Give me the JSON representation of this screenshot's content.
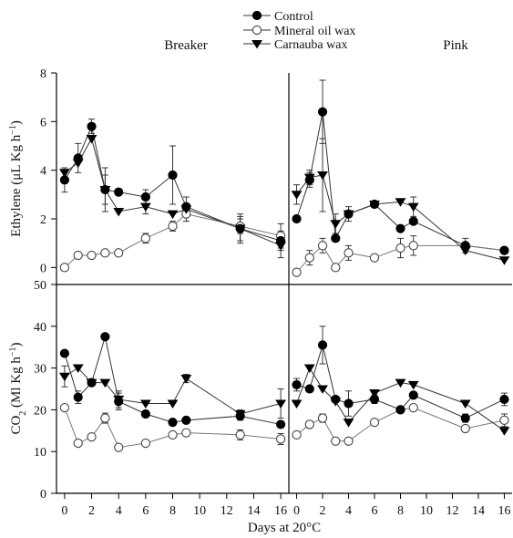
{
  "chart_data": {
    "type": "line",
    "xlabel": "Days at 20°C",
    "x_ticks": [
      0,
      2,
      4,
      6,
      8,
      10,
      12,
      14,
      16
    ],
    "legend": {
      "placement": "top-center",
      "entries": [
        {
          "name": "Control",
          "marker": "filled-circle"
        },
        {
          "name": "Mineral oil wax",
          "marker": "open-circle"
        },
        {
          "name": "Carnauba wax",
          "marker": "filled-triangle-down"
        }
      ]
    },
    "stages": [
      "Breaker",
      "Pink"
    ],
    "rows": [
      {
        "ylabel_main": "Ethylene (μL Kg h",
        "ylabel_sup": "−1",
        "ylabel_tail": ")",
        "ylim": [
          -0.7,
          8
        ],
        "yticks": [
          0,
          2,
          4,
          6,
          8
        ]
      },
      {
        "ylabel_main": "CO",
        "ylabel_sub": "2",
        "ylabel_mid": " (Ml Kg h",
        "ylabel_sup": "−1",
        "ylabel_tail": ")",
        "ylim": [
          0,
          50
        ],
        "yticks": [
          0,
          10,
          20,
          30,
          40,
          50
        ]
      }
    ],
    "panels": [
      {
        "row": 0,
        "col": 0,
        "stage": "Breaker",
        "quantity": "ethylene",
        "series": [
          {
            "name": "Control",
            "marker": "filled-circle",
            "x": [
              0,
              1,
              2,
              3,
              4,
              6,
              8,
              9,
              13,
              16
            ],
            "y": [
              3.6,
              4.5,
              5.8,
              3.2,
              3.1,
              2.9,
              3.8,
              2.5,
              1.6,
              1.1
            ],
            "err": [
              0.5,
              0.6,
              0.3,
              0.6,
              0.1,
              0.3,
              1.2,
              0.4,
              0.6,
              0.4
            ]
          },
          {
            "name": "Mineral oil wax",
            "marker": "open-circle",
            "x": [
              0,
              1,
              2,
              3,
              4,
              6,
              8,
              9,
              13,
              16
            ],
            "y": [
              0.0,
              0.5,
              0.5,
              0.6,
              0.6,
              1.2,
              1.7,
              2.2,
              1.7,
              1.3
            ],
            "err": [
              0,
              0,
              0,
              0,
              0,
              0.2,
              0.2,
              0.3,
              0.3,
              0.5
            ]
          },
          {
            "name": "Carnauba wax",
            "marker": "filled-triangle-down",
            "x": [
              0,
              1,
              2,
              3,
              4,
              6,
              8,
              9,
              13,
              16
            ],
            "y": [
              3.9,
              4.3,
              5.3,
              3.2,
              2.3,
              2.5,
              2.2,
              2.4,
              1.6,
              0.9
            ],
            "err": [
              0,
              0,
              0,
              0.9,
              0,
              0.3,
              0,
              0,
              0.5,
              0.5
            ]
          }
        ]
      },
      {
        "row": 0,
        "col": 1,
        "stage": "Pink",
        "quantity": "ethylene",
        "series": [
          {
            "name": "Control",
            "marker": "filled-circle",
            "x": [
              0,
              1,
              2,
              3,
              4,
              6,
              8,
              9,
              13,
              16
            ],
            "y": [
              2.0,
              3.6,
              6.4,
              1.2,
              2.2,
              2.6,
              1.6,
              1.9,
              0.9,
              0.7
            ],
            "err": [
              0,
              0.3,
              1.3,
              0,
              0.3,
              0,
              0,
              0,
              0.3,
              0
            ]
          },
          {
            "name": "Mineral oil wax",
            "marker": "open-circle",
            "x": [
              0,
              1,
              2,
              3,
              4,
              6,
              8,
              9,
              13,
              16
            ],
            "y": [
              -0.2,
              0.4,
              0.9,
              0.0,
              0.6,
              0.4,
              0.8,
              0.9,
              0.9,
              0.7
            ],
            "err": [
              0,
              0.3,
              0.3,
              0,
              0.3,
              0,
              0.4,
              0.4,
              0,
              0
            ]
          },
          {
            "name": "Carnauba wax",
            "marker": "filled-triangle-down",
            "x": [
              0,
              1,
              2,
              3,
              4,
              6,
              8,
              9,
              13,
              16
            ],
            "y": [
              3.0,
              3.7,
              3.8,
              1.8,
              2.2,
              2.6,
              2.7,
              2.5,
              0.7,
              0.3
            ],
            "err": [
              0.4,
              0.3,
              1.5,
              0.4,
              0,
              0,
              0,
              0.4,
              0,
              0
            ]
          }
        ]
      },
      {
        "row": 1,
        "col": 0,
        "stage": "Breaker",
        "quantity": "co2",
        "series": [
          {
            "name": "Control",
            "marker": "filled-circle",
            "x": [
              0,
              1,
              2,
              3,
              4,
              6,
              8,
              9,
              13,
              16
            ],
            "y": [
              33.5,
              23.0,
              26.5,
              37.5,
              22.0,
              19.0,
              17.0,
              17.5,
              18.5,
              16.5
            ],
            "err": [
              0,
              1.5,
              0,
              0,
              2.0,
              0,
              0,
              0,
              1.0,
              0
            ]
          },
          {
            "name": "Mineral oil wax",
            "marker": "open-circle",
            "x": [
              0,
              1,
              2,
              3,
              4,
              6,
              8,
              9,
              13,
              16
            ],
            "y": [
              20.5,
              12.0,
              13.5,
              18.0,
              11.0,
              12.0,
              14.0,
              14.5,
              14.0,
              13.0
            ],
            "err": [
              0,
              0,
              0,
              1.2,
              0,
              0,
              0,
              0,
              1.2,
              1.3
            ]
          },
          {
            "name": "Carnauba wax",
            "marker": "filled-triangle-down",
            "x": [
              0,
              1,
              2,
              3,
              4,
              6,
              8,
              9,
              13,
              16
            ],
            "y": [
              28.0,
              30.0,
              26.5,
              26.5,
              22.5,
              21.5,
              21.5,
              27.5,
              19.0,
              21.5
            ],
            "err": [
              2.5,
              0,
              0,
              0,
              2.0,
              0,
              0,
              1.0,
              1.0,
              3.5
            ]
          }
        ]
      },
      {
        "row": 1,
        "col": 1,
        "stage": "Pink",
        "quantity": "co2",
        "series": [
          {
            "name": "Control",
            "marker": "filled-circle",
            "x": [
              0,
              1,
              2,
              3,
              4,
              6,
              8,
              9,
              13,
              16
            ],
            "y": [
              26.0,
              25.0,
              35.5,
              22.5,
              21.5,
              22.5,
              20.0,
              23.5,
              18.0,
              22.5
            ],
            "err": [
              1.5,
              0,
              4.5,
              0,
              3.0,
              1.0,
              0,
              0,
              1.0,
              1.5
            ]
          },
          {
            "name": "Mineral oil wax",
            "marker": "open-circle",
            "x": [
              0,
              1,
              2,
              3,
              4,
              6,
              8,
              9,
              13,
              16
            ],
            "y": [
              14.0,
              16.5,
              18.0,
              12.5,
              12.5,
              17.0,
              20.0,
              20.5,
              15.5,
              17.5
            ],
            "err": [
              0,
              0.8,
              1.0,
              0,
              0,
              0,
              0,
              0,
              0,
              1.5
            ]
          },
          {
            "name": "Carnauba wax",
            "marker": "filled-triangle-down",
            "x": [
              0,
              1,
              2,
              3,
              4,
              6,
              8,
              9,
              13,
              16
            ],
            "y": [
              21.5,
              30.0,
              25.0,
              22.0,
              17.0,
              24.0,
              26.5,
              26.0,
              21.5,
              15.0
            ],
            "err": [
              0,
              0,
              0,
              0,
              0,
              0,
              0,
              0,
              0,
              0
            ]
          }
        ]
      }
    ]
  }
}
